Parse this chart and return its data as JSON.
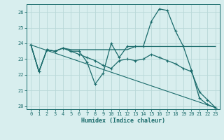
{
  "xlabel": "Humidex (Indice chaleur)",
  "xlim": [
    -0.5,
    23.5
  ],
  "ylim": [
    19.8,
    26.5
  ],
  "background_color": "#d8eeee",
  "grid_color": "#b8d8d8",
  "line_color": "#1a6b6b",
  "lines": [
    {
      "x": [
        0,
        1,
        2,
        3,
        4,
        5,
        6,
        7,
        8,
        9,
        10,
        11,
        12,
        13,
        14,
        15,
        16,
        17,
        18,
        19,
        20,
        21,
        22,
        23
      ],
      "y": [
        23.9,
        22.2,
        23.6,
        23.5,
        23.7,
        23.6,
        23.6,
        23.6,
        23.6,
        23.6,
        23.6,
        23.6,
        23.6,
        23.8,
        23.8,
        23.8,
        23.8,
        23.8,
        23.8,
        23.8,
        23.8,
        23.8,
        23.8,
        23.8
      ],
      "marker": false,
      "linestyle": "-",
      "linewidth": 0.9
    },
    {
      "x": [
        0,
        1,
        2,
        3,
        4,
        5,
        6,
        7,
        8,
        9,
        10,
        11,
        12,
        13,
        14,
        15,
        16,
        17,
        18,
        19,
        20,
        21,
        22,
        23
      ],
      "y": [
        23.9,
        22.2,
        23.6,
        23.5,
        23.7,
        23.5,
        23.5,
        22.8,
        21.4,
        22.1,
        24.0,
        23.1,
        23.8,
        23.8,
        23.8,
        25.4,
        26.2,
        26.1,
        24.8,
        23.8,
        22.3,
        20.5,
        20.1,
        19.9
      ],
      "marker": true,
      "linestyle": "-",
      "linewidth": 0.9
    },
    {
      "x": [
        0,
        1,
        2,
        3,
        4,
        5,
        6,
        7,
        8,
        9,
        10,
        11,
        12,
        13,
        14,
        15,
        16,
        17,
        18,
        19,
        20,
        21,
        22,
        23
      ],
      "y": [
        23.9,
        22.2,
        23.6,
        23.5,
        23.7,
        23.5,
        23.3,
        23.1,
        22.9,
        22.6,
        22.4,
        22.9,
        23.0,
        22.9,
        23.0,
        23.3,
        23.1,
        22.9,
        22.7,
        22.4,
        22.2,
        20.9,
        20.4,
        19.9
      ],
      "marker": true,
      "linestyle": "-",
      "linewidth": 0.9
    },
    {
      "x": [
        0,
        23
      ],
      "y": [
        23.9,
        19.9
      ],
      "marker": false,
      "linestyle": "-",
      "linewidth": 0.8
    }
  ],
  "yticks": [
    20,
    21,
    22,
    23,
    24,
    25,
    26
  ],
  "xticks": [
    0,
    1,
    2,
    3,
    4,
    5,
    6,
    7,
    8,
    9,
    10,
    11,
    12,
    13,
    14,
    15,
    16,
    17,
    18,
    19,
    20,
    21,
    22,
    23
  ],
  "tick_fontsize": 5,
  "xlabel_fontsize": 6
}
